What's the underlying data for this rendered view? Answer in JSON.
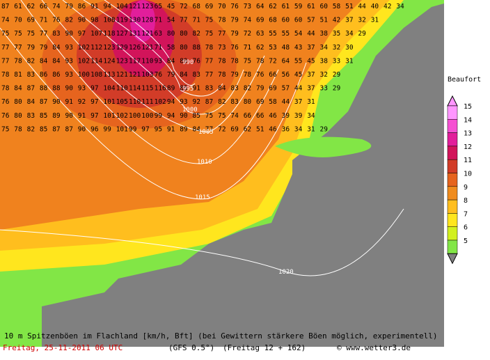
{
  "map": {
    "grid_rows": [
      [
        87,
        61,
        62,
        66,
        74,
        79,
        86,
        91,
        94,
        104,
        121,
        123,
        65,
        45,
        72,
        68,
        69,
        70,
        76,
        73,
        64,
        62,
        61,
        59,
        61,
        60,
        58,
        51,
        44,
        40,
        42,
        34
      ],
      [
        74,
        70,
        69,
        71,
        76,
        82,
        90,
        98,
        108,
        119,
        130,
        128,
        71,
        54,
        77,
        71,
        75,
        78,
        79,
        74,
        69,
        68,
        60,
        60,
        57,
        51,
        42,
        37,
        32,
        31
      ],
      [
        75,
        75,
        75,
        77,
        83,
        90,
        97,
        107,
        118,
        127,
        131,
        121,
        63,
        80,
        80,
        82,
        75,
        77,
        79,
        72,
        63,
        55,
        55,
        54,
        44,
        38,
        35,
        34,
        29
      ],
      [
        77,
        77,
        79,
        79,
        84,
        93,
        102,
        112,
        123,
        129,
        126,
        121,
        71,
        58,
        80,
        88,
        78,
        73,
        76,
        71,
        62,
        53,
        48,
        43,
        37,
        34,
        32,
        30
      ],
      [
        77,
        78,
        82,
        84,
        84,
        93,
        102,
        114,
        124,
        123,
        117,
        110,
        93,
        84,
        89,
        76,
        77,
        78,
        78,
        75,
        78,
        72,
        64,
        55,
        45,
        38,
        33,
        31
      ],
      [
        78,
        81,
        83,
        86,
        86,
        93,
        100,
        108,
        113,
        121,
        121,
        103,
        76,
        79,
        84,
        83,
        77,
        78,
        79,
        78,
        76,
        66,
        56,
        45,
        37,
        32,
        29
      ],
      [
        78,
        84,
        87,
        88,
        88,
        90,
        93,
        97,
        104,
        110,
        114,
        115,
        116,
        89,
        85,
        91,
        83,
        84,
        83,
        82,
        79,
        69,
        57,
        44,
        37,
        33,
        29
      ],
      [
        76,
        80,
        84,
        87,
        90,
        91,
        92,
        97,
        101,
        105,
        110,
        111,
        102,
        94,
        93,
        92,
        87,
        82,
        83,
        80,
        69,
        58,
        44,
        37,
        31
      ],
      [
        76,
        80,
        83,
        85,
        89,
        90,
        91,
        97,
        101,
        102,
        100,
        100,
        99,
        94,
        90,
        85,
        75,
        75,
        74,
        66,
        66,
        46,
        39,
        39,
        34
      ],
      [
        75,
        78,
        82,
        85,
        87,
        87,
        90,
        96,
        99,
        101,
        99,
        97,
        95,
        91,
        89,
        84,
        77,
        72,
        69,
        62,
        51,
        46,
        36,
        34,
        31,
        29
      ]
    ],
    "isobars": [
      "990",
      "995",
      "1000",
      "1005",
      "1010",
      "1015",
      "1020"
    ],
    "legend": {
      "title": "Beaufort",
      "levels": [
        {
          "label": "15",
          "color": "#ff96ff"
        },
        {
          "label": "14",
          "color": "#f550d2"
        },
        {
          "label": "13",
          "color": "#e21e9b"
        },
        {
          "label": "12",
          "color": "#d2145a"
        },
        {
          "label": "11",
          "color": "#d23c28"
        },
        {
          "label": "10",
          "color": "#e6641e"
        },
        {
          "label": "9",
          "color": "#f08c1e"
        },
        {
          "label": "8",
          "color": "#ffbe1e"
        },
        {
          "label": "7",
          "color": "#ffe61e"
        },
        {
          "label": "6",
          "color": "#d2f01e"
        },
        {
          "label": "5",
          "color": "#82e646"
        }
      ]
    },
    "footer": {
      "caption": "10 m Spitzenböen im Flachland [km/h, Bft] (bei Gewittern stärkere Böen möglich, experimentell)",
      "date": "Freitag, 25-11-2011  06 UTC",
      "model": "(GFS 0.5°)",
      "run": "(Freitag 12 + 162)",
      "credit": "© www.wetter3.de"
    }
  }
}
